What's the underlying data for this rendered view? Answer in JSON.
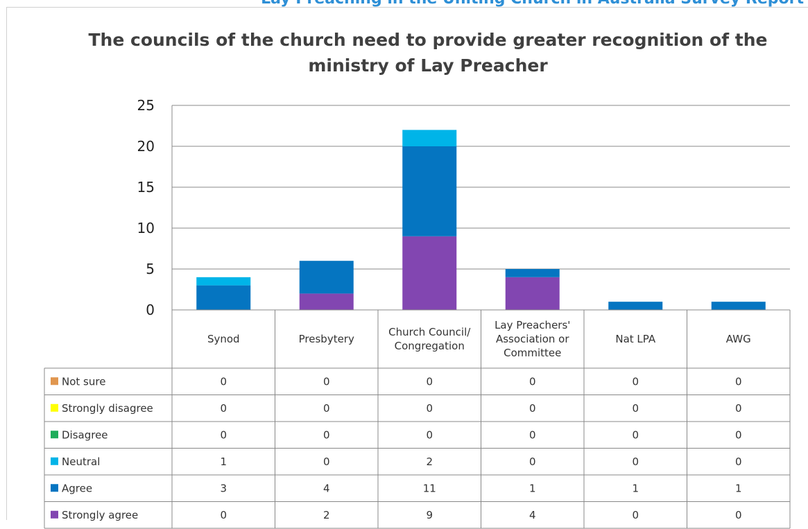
{
  "header_fragment": "Lay Preaching in the Uniting Church in Australia Survey Report",
  "chart_data": {
    "type": "bar",
    "stacked": true,
    "title": "The councils of the church need to provide greater recognition of the ministry of Lay Preacher",
    "title_lines": [
      "The councils of the church need to provide greater recognition of the",
      "ministry of Lay Preacher"
    ],
    "categories": [
      "Synod",
      "Presbytery",
      "Church Council/ Congregation",
      "Lay Preachers' Association or Committee",
      "Nat LPA",
      "AWG"
    ],
    "category_lines": [
      [
        "Synod"
      ],
      [
        "Presbytery"
      ],
      [
        "Church Council/",
        "Congregation"
      ],
      [
        "Lay Preachers'",
        "Association or",
        "Committee"
      ],
      [
        "Nat LPA"
      ],
      [
        "AWG"
      ]
    ],
    "ylim": [
      0,
      25
    ],
    "yticks": [
      0,
      5,
      10,
      15,
      20,
      25
    ],
    "grid": true,
    "legend_placement": "data-table-left",
    "series": [
      {
        "name": "Not sure",
        "color": "#e0964f",
        "values": [
          0,
          0,
          0,
          0,
          0,
          0
        ]
      },
      {
        "name": "Strongly disagree",
        "color": "#ffff00",
        "values": [
          0,
          0,
          0,
          0,
          0,
          0
        ]
      },
      {
        "name": "Disagree",
        "color": "#1fad5b",
        "values": [
          0,
          0,
          0,
          0,
          0,
          0
        ]
      },
      {
        "name": "Neutral",
        "color": "#00b4e8",
        "values": [
          1,
          0,
          2,
          0,
          0,
          0
        ]
      },
      {
        "name": "Agree",
        "color": "#0575c1",
        "values": [
          3,
          4,
          11,
          1,
          1,
          1
        ]
      },
      {
        "name": "Strongly agree",
        "color": "#8246b1",
        "values": [
          0,
          2,
          9,
          4,
          0,
          0
        ]
      }
    ]
  }
}
